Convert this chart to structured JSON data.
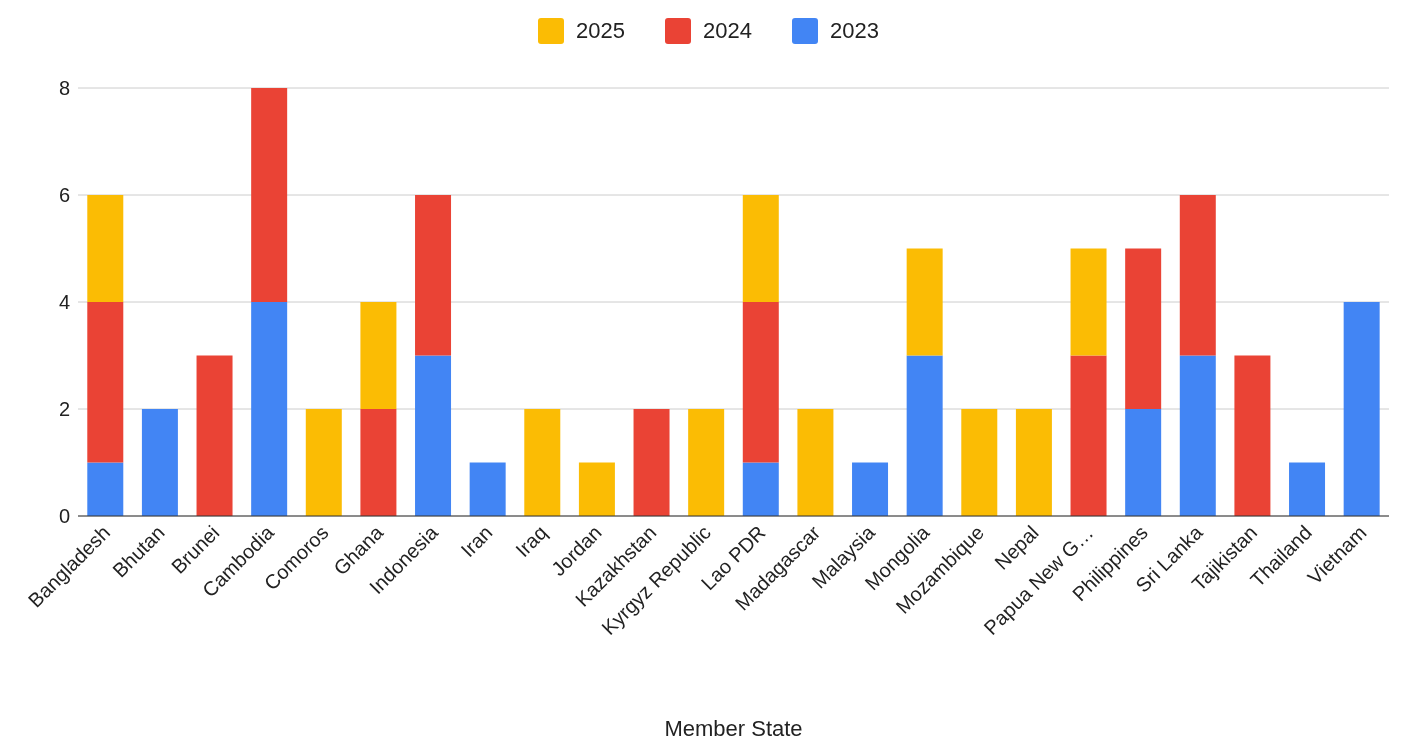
{
  "chart_data": {
    "type": "bar",
    "stacked": true,
    "xlabel": "Member State",
    "categories": [
      "Bangladesh",
      "Bhutan",
      "Brunei",
      "Cambodia",
      "Comoros",
      "Ghana",
      "Indonesia",
      "Iran",
      "Iraq",
      "Jordan",
      "Kazakhstan",
      "Kyrgyz Republic",
      "Lao PDR",
      "Madagascar",
      "Malaysia",
      "Mongolia",
      "Mozambique",
      "Nepal",
      "Papua New G…",
      "Philippines",
      "Sri Lanka",
      "Tajikistan",
      "Thailand",
      "Vietnam"
    ],
    "series": [
      {
        "name": "2023",
        "color": "#4285f4",
        "values": [
          1,
          2,
          null,
          4,
          null,
          null,
          3,
          1,
          null,
          null,
          null,
          null,
          1,
          null,
          1,
          3,
          null,
          null,
          null,
          2,
          3,
          null,
          1,
          4
        ]
      },
      {
        "name": "2024",
        "color": "#ea4335",
        "values": [
          3,
          null,
          3,
          4,
          null,
          2,
          3,
          null,
          null,
          null,
          2,
          null,
          3,
          null,
          null,
          null,
          null,
          null,
          3,
          3,
          3,
          3,
          null,
          null
        ]
      },
      {
        "name": "2025",
        "color": "#fbbc04",
        "values": [
          2,
          null,
          null,
          null,
          2,
          2,
          null,
          null,
          2,
          1,
          null,
          2,
          2,
          2,
          null,
          2,
          2,
          2,
          2,
          null,
          null,
          null,
          null,
          null
        ]
      }
    ],
    "ylim": [
      0,
      8
    ],
    "yticks": [
      0,
      2,
      4,
      6,
      8
    ],
    "grid": "y",
    "legend": "top"
  }
}
